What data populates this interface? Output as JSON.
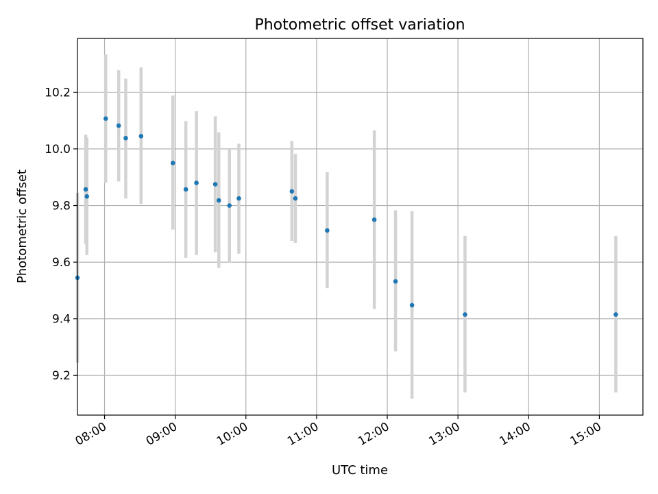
{
  "chart_data": {
    "type": "scatter",
    "title": "Photometric offset variation",
    "xlabel": "UTC time",
    "ylabel": "Photometric offset",
    "xlim": [
      "07:37",
      "15:37"
    ],
    "ylim": [
      9.06,
      10.39
    ],
    "x_ticks": [
      "08:00",
      "09:00",
      "10:00",
      "11:00",
      "12:00",
      "13:00",
      "14:00",
      "15:00"
    ],
    "y_ticks": [
      "9.2",
      "9.4",
      "9.6",
      "9.8",
      "10.0",
      "10.2"
    ],
    "grid": true,
    "marker_color": "#1f77b4",
    "errorbar_color": "#d3d3d3",
    "points": [
      {
        "x": "07:37",
        "y": 9.545,
        "y_low": 9.245,
        "y_high": 9.845
      },
      {
        "x": "07:44",
        "y": 9.857,
        "y_low": 9.665,
        "y_high": 10.05
      },
      {
        "x": "07:45",
        "y": 9.832,
        "y_low": 9.625,
        "y_high": 10.04
      },
      {
        "x": "08:01",
        "y": 10.107,
        "y_low": 9.88,
        "y_high": 10.333
      },
      {
        "x": "08:12",
        "y": 10.082,
        "y_low": 9.885,
        "y_high": 10.278
      },
      {
        "x": "08:18",
        "y": 10.038,
        "y_low": 9.825,
        "y_high": 10.248
      },
      {
        "x": "08:31",
        "y": 10.045,
        "y_low": 9.805,
        "y_high": 10.288
      },
      {
        "x": "08:58",
        "y": 9.95,
        "y_low": 9.715,
        "y_high": 10.188
      },
      {
        "x": "09:09",
        "y": 9.857,
        "y_low": 9.615,
        "y_high": 10.098
      },
      {
        "x": "09:18",
        "y": 9.88,
        "y_low": 9.625,
        "y_high": 10.133
      },
      {
        "x": "09:34",
        "y": 9.875,
        "y_low": 9.635,
        "y_high": 10.115
      },
      {
        "x": "09:37",
        "y": 9.818,
        "y_low": 9.58,
        "y_high": 10.058
      },
      {
        "x": "09:46",
        "y": 9.8,
        "y_low": 9.598,
        "y_high": 10.0
      },
      {
        "x": "09:54",
        "y": 9.825,
        "y_low": 9.63,
        "y_high": 10.018
      },
      {
        "x": "10:39",
        "y": 9.85,
        "y_low": 9.675,
        "y_high": 10.028
      },
      {
        "x": "10:42",
        "y": 9.825,
        "y_low": 9.668,
        "y_high": 9.982
      },
      {
        "x": "11:09",
        "y": 9.712,
        "y_low": 9.508,
        "y_high": 9.918
      },
      {
        "x": "11:49",
        "y": 9.75,
        "y_low": 9.435,
        "y_high": 10.065
      },
      {
        "x": "12:07",
        "y": 9.532,
        "y_low": 9.285,
        "y_high": 9.783
      },
      {
        "x": "12:21",
        "y": 9.448,
        "y_low": 9.118,
        "y_high": 9.78
      },
      {
        "x": "13:06",
        "y": 9.415,
        "y_low": 9.14,
        "y_high": 9.693
      },
      {
        "x": "15:14",
        "y": 9.415,
        "y_low": 9.14,
        "y_high": 9.693
      }
    ]
  }
}
